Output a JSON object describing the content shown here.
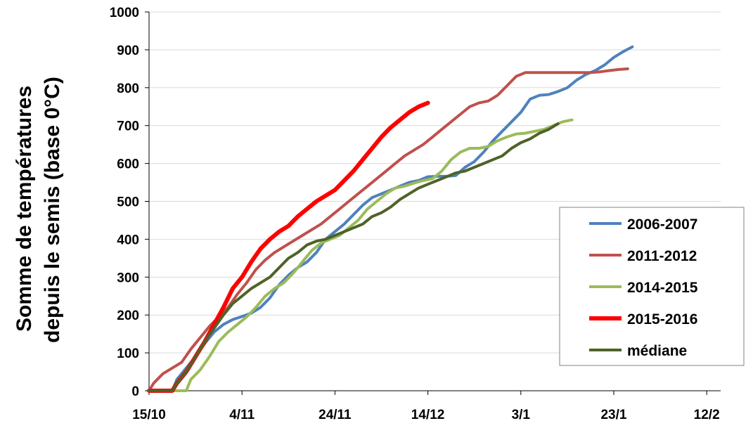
{
  "chart_data": {
    "type": "line",
    "ylabel_lines": [
      "Somme de températures",
      "depuis le semis (base 0°C)"
    ],
    "xlabel": "",
    "title": "",
    "ylim": [
      0,
      1000
    ],
    "yticks": [
      0,
      100,
      200,
      300,
      400,
      500,
      600,
      700,
      800,
      900,
      1000
    ],
    "xrange_days": [
      0,
      123
    ],
    "xticks": [
      {
        "label": "15/10",
        "day": 0
      },
      {
        "label": "4/11",
        "day": 20
      },
      {
        "label": "24/11",
        "day": 40
      },
      {
        "label": "14/12",
        "day": 60
      },
      {
        "label": "3/1",
        "day": 80
      },
      {
        "label": "23/1",
        "day": 100
      },
      {
        "label": "12/2",
        "day": 120
      }
    ],
    "grid": "horizontal",
    "legend_position": "right",
    "series": [
      {
        "name": "2006-2007",
        "color": "#4f81bd",
        "width": 4,
        "points": [
          [
            0,
            0
          ],
          [
            5,
            0
          ],
          [
            6,
            30
          ],
          [
            8,
            60
          ],
          [
            10,
            90
          ],
          [
            12,
            125
          ],
          [
            14,
            155
          ],
          [
            16,
            175
          ],
          [
            18,
            188
          ],
          [
            20,
            196
          ],
          [
            22,
            205
          ],
          [
            24,
            220
          ],
          [
            26,
            245
          ],
          [
            28,
            280
          ],
          [
            30,
            305
          ],
          [
            32,
            325
          ],
          [
            34,
            340
          ],
          [
            36,
            365
          ],
          [
            38,
            400
          ],
          [
            40,
            420
          ],
          [
            42,
            440
          ],
          [
            44,
            465
          ],
          [
            46,
            490
          ],
          [
            48,
            510
          ],
          [
            50,
            520
          ],
          [
            52,
            530
          ],
          [
            54,
            540
          ],
          [
            56,
            550
          ],
          [
            58,
            555
          ],
          [
            60,
            565
          ],
          [
            62,
            566
          ],
          [
            64,
            566
          ],
          [
            66,
            568
          ],
          [
            68,
            590
          ],
          [
            70,
            605
          ],
          [
            72,
            630
          ],
          [
            74,
            660
          ],
          [
            76,
            685
          ],
          [
            78,
            710
          ],
          [
            80,
            735
          ],
          [
            82,
            770
          ],
          [
            84,
            780
          ],
          [
            86,
            782
          ],
          [
            88,
            790
          ],
          [
            90,
            800
          ],
          [
            92,
            820
          ],
          [
            94,
            835
          ],
          [
            96,
            845
          ],
          [
            98,
            860
          ],
          [
            100,
            880
          ],
          [
            102,
            895
          ],
          [
            104,
            908
          ]
        ]
      },
      {
        "name": "2011-2012",
        "color": "#c0504d",
        "width": 4,
        "points": [
          [
            0,
            0
          ],
          [
            1,
            20
          ],
          [
            3,
            45
          ],
          [
            5,
            60
          ],
          [
            7,
            75
          ],
          [
            9,
            110
          ],
          [
            11,
            140
          ],
          [
            13,
            170
          ],
          [
            15,
            195
          ],
          [
            17,
            220
          ],
          [
            19,
            255
          ],
          [
            21,
            285
          ],
          [
            23,
            320
          ],
          [
            25,
            345
          ],
          [
            27,
            365
          ],
          [
            29,
            380
          ],
          [
            31,
            395
          ],
          [
            33,
            410
          ],
          [
            35,
            425
          ],
          [
            37,
            440
          ],
          [
            39,
            460
          ],
          [
            41,
            480
          ],
          [
            43,
            500
          ],
          [
            45,
            520
          ],
          [
            47,
            540
          ],
          [
            49,
            560
          ],
          [
            51,
            580
          ],
          [
            53,
            600
          ],
          [
            55,
            620
          ],
          [
            57,
            635
          ],
          [
            59,
            650
          ],
          [
            61,
            670
          ],
          [
            63,
            690
          ],
          [
            65,
            710
          ],
          [
            67,
            730
          ],
          [
            69,
            750
          ],
          [
            71,
            760
          ],
          [
            73,
            765
          ],
          [
            75,
            780
          ],
          [
            77,
            805
          ],
          [
            79,
            830
          ],
          [
            81,
            840
          ],
          [
            83,
            840
          ],
          [
            85,
            840
          ],
          [
            87,
            840
          ],
          [
            89,
            840
          ],
          [
            91,
            840
          ],
          [
            93,
            840
          ],
          [
            95,
            840
          ],
          [
            97,
            842
          ],
          [
            99,
            845
          ],
          [
            101,
            848
          ],
          [
            103,
            850
          ]
        ]
      },
      {
        "name": "2014-2015",
        "color": "#9bbb59",
        "width": 4,
        "points": [
          [
            0,
            0
          ],
          [
            6,
            0
          ],
          [
            8,
            0
          ],
          [
            9,
            30
          ],
          [
            11,
            55
          ],
          [
            13,
            90
          ],
          [
            15,
            130
          ],
          [
            17,
            155
          ],
          [
            19,
            175
          ],
          [
            21,
            195
          ],
          [
            23,
            220
          ],
          [
            25,
            250
          ],
          [
            27,
            270
          ],
          [
            29,
            285
          ],
          [
            31,
            310
          ],
          [
            33,
            340
          ],
          [
            35,
            370
          ],
          [
            37,
            390
          ],
          [
            39,
            400
          ],
          [
            41,
            410
          ],
          [
            43,
            430
          ],
          [
            45,
            450
          ],
          [
            47,
            480
          ],
          [
            49,
            500
          ],
          [
            51,
            520
          ],
          [
            53,
            535
          ],
          [
            55,
            540
          ],
          [
            57,
            548
          ],
          [
            59,
            555
          ],
          [
            61,
            560
          ],
          [
            63,
            580
          ],
          [
            65,
            610
          ],
          [
            67,
            630
          ],
          [
            69,
            640
          ],
          [
            71,
            640
          ],
          [
            73,
            645
          ],
          [
            75,
            660
          ],
          [
            77,
            670
          ],
          [
            79,
            678
          ],
          [
            81,
            680
          ],
          [
            83,
            685
          ],
          [
            85,
            690
          ],
          [
            87,
            700
          ],
          [
            89,
            710
          ],
          [
            91,
            715
          ]
        ]
      },
      {
        "name": "2015-2016",
        "color": "#ff0000",
        "width": 6,
        "points": [
          [
            0,
            0
          ],
          [
            5,
            0
          ],
          [
            6,
            20
          ],
          [
            8,
            50
          ],
          [
            10,
            90
          ],
          [
            12,
            130
          ],
          [
            14,
            175
          ],
          [
            16,
            220
          ],
          [
            18,
            270
          ],
          [
            20,
            300
          ],
          [
            22,
            340
          ],
          [
            24,
            375
          ],
          [
            26,
            400
          ],
          [
            28,
            420
          ],
          [
            30,
            435
          ],
          [
            32,
            460
          ],
          [
            34,
            480
          ],
          [
            36,
            500
          ],
          [
            38,
            515
          ],
          [
            40,
            530
          ],
          [
            42,
            555
          ],
          [
            44,
            580
          ],
          [
            46,
            610
          ],
          [
            48,
            640
          ],
          [
            50,
            670
          ],
          [
            52,
            695
          ],
          [
            54,
            715
          ],
          [
            56,
            735
          ],
          [
            58,
            750
          ],
          [
            60,
            760
          ]
        ]
      },
      {
        "name": "médiane",
        "color": "#4f6228",
        "width": 4,
        "points": [
          [
            0,
            0
          ],
          [
            5,
            0
          ],
          [
            6,
            20
          ],
          [
            8,
            50
          ],
          [
            10,
            90
          ],
          [
            12,
            130
          ],
          [
            14,
            165
          ],
          [
            16,
            200
          ],
          [
            18,
            230
          ],
          [
            20,
            250
          ],
          [
            22,
            270
          ],
          [
            24,
            285
          ],
          [
            26,
            300
          ],
          [
            28,
            325
          ],
          [
            30,
            350
          ],
          [
            32,
            365
          ],
          [
            34,
            385
          ],
          [
            36,
            395
          ],
          [
            38,
            400
          ],
          [
            40,
            410
          ],
          [
            42,
            420
          ],
          [
            44,
            430
          ],
          [
            46,
            440
          ],
          [
            48,
            460
          ],
          [
            50,
            470
          ],
          [
            52,
            485
          ],
          [
            54,
            505
          ],
          [
            56,
            520
          ],
          [
            58,
            535
          ],
          [
            60,
            545
          ],
          [
            62,
            555
          ],
          [
            64,
            565
          ],
          [
            66,
            575
          ],
          [
            68,
            580
          ],
          [
            70,
            590
          ],
          [
            72,
            600
          ],
          [
            74,
            610
          ],
          [
            76,
            620
          ],
          [
            78,
            640
          ],
          [
            80,
            655
          ],
          [
            82,
            665
          ],
          [
            84,
            680
          ],
          [
            86,
            690
          ],
          [
            88,
            705
          ]
        ]
      }
    ]
  }
}
